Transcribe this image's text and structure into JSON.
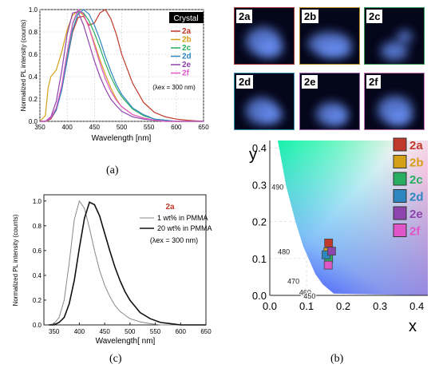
{
  "charts": {
    "a": {
      "caption": "(a)",
      "ylabel": "Normalized PL intensity (counts)",
      "xlabel": "Wavelength [nm]",
      "badge": "Crystal",
      "excitation_note": "(λex = 300 nm)",
      "x_ticks": [
        "350",
        "400",
        "450",
        "500",
        "550",
        "600",
        "650"
      ],
      "y_ticks": [
        "0.0",
        "0.2",
        "0.4",
        "0.6",
        "0.8",
        "1.0"
      ]
    },
    "b": {
      "caption": "(b)",
      "ylabel": "y",
      "xlabel": "x",
      "x_ticks": [
        "0.0",
        "0.1",
        "0.2",
        "0.3",
        "0.4"
      ],
      "y_ticks": [
        "0.0",
        "0.1",
        "0.2",
        "0.3",
        "0.4"
      ],
      "locus_labels": [
        "490",
        "480",
        "470",
        "460",
        "450"
      ]
    },
    "c": {
      "caption": "(c)",
      "ylabel": "Normalized PL intensity (counts)",
      "xlabel": "Wavelength[ nm]",
      "compound": "2a",
      "excitation_note": "(λex = 300 nm)",
      "x_ticks": [
        "350",
        "400",
        "450",
        "500",
        "550",
        "600",
        "650"
      ],
      "y_ticks": [
        "0.0",
        "0.2",
        "0.4",
        "0.6",
        "0.8",
        "1.0"
      ]
    }
  },
  "photos": [
    {
      "label": "2a",
      "border": "#a03a3a"
    },
    {
      "label": "2b",
      "border": "#b88a2a"
    },
    {
      "label": "2c",
      "border": "#3a9a5a"
    },
    {
      "label": "2d",
      "border": "#3a8ab0"
    },
    {
      "label": "2e",
      "border": "#a060b0"
    },
    {
      "label": "2f",
      "border": "#c070b0"
    }
  ],
  "chart_data": [
    {
      "type": "line",
      "title": "",
      "xlabel": "Wavelength [nm]",
      "ylabel": "Normalized PL intensity (counts)",
      "xlim": [
        350,
        650
      ],
      "ylim": [
        0,
        1.0
      ],
      "legend_position": "top-right",
      "series": [
        {
          "name": "2a",
          "color": "#c0392b",
          "x": [
            350,
            360,
            370,
            380,
            390,
            400,
            410,
            420,
            430,
            440,
            450,
            460,
            470,
            480,
            490,
            500,
            520,
            540,
            560,
            580,
            600,
            620,
            650
          ],
          "y": [
            0.0,
            0.0,
            0.02,
            0.1,
            0.28,
            0.55,
            0.8,
            0.93,
            0.94,
            0.86,
            0.88,
            0.97,
            1.0,
            0.92,
            0.78,
            0.6,
            0.34,
            0.17,
            0.08,
            0.04,
            0.02,
            0.01,
            0.0
          ]
        },
        {
          "name": "2b",
          "color": "#d4a017",
          "x": [
            350,
            360,
            365,
            370,
            380,
            390,
            400,
            410,
            420,
            430,
            440,
            450,
            460,
            470,
            480,
            490,
            500,
            520,
            540,
            560,
            580,
            600,
            650
          ],
          "y": [
            0.0,
            0.05,
            0.3,
            0.4,
            0.46,
            0.62,
            0.82,
            0.95,
            0.99,
            0.95,
            0.84,
            0.7,
            0.55,
            0.42,
            0.3,
            0.2,
            0.13,
            0.06,
            0.03,
            0.01,
            0.0,
            0.0,
            0.0
          ]
        },
        {
          "name": "2c",
          "color": "#27ae60",
          "x": [
            350,
            360,
            370,
            380,
            390,
            400,
            410,
            420,
            430,
            440,
            450,
            460,
            470,
            480,
            490,
            500,
            520,
            540,
            560,
            580,
            600,
            650
          ],
          "y": [
            0.0,
            0.0,
            0.03,
            0.12,
            0.3,
            0.6,
            0.87,
            0.99,
            0.97,
            0.9,
            0.79,
            0.66,
            0.52,
            0.4,
            0.3,
            0.22,
            0.11,
            0.05,
            0.02,
            0.01,
            0.0,
            0.0
          ]
        },
        {
          "name": "2d",
          "color": "#2e86c1",
          "x": [
            350,
            360,
            370,
            380,
            390,
            400,
            410,
            420,
            430,
            440,
            450,
            460,
            470,
            480,
            490,
            500,
            520,
            540,
            560,
            580,
            600,
            650
          ],
          "y": [
            0.0,
            0.0,
            0.03,
            0.1,
            0.28,
            0.55,
            0.82,
            0.96,
            1.0,
            0.96,
            0.86,
            0.73,
            0.58,
            0.45,
            0.33,
            0.24,
            0.12,
            0.06,
            0.02,
            0.01,
            0.0,
            0.0
          ]
        },
        {
          "name": "2e",
          "color": "#8e44ad",
          "x": [
            350,
            360,
            370,
            380,
            390,
            400,
            410,
            420,
            430,
            440,
            450,
            460,
            470,
            480,
            490,
            500,
            520,
            540,
            560,
            580,
            600,
            650
          ],
          "y": [
            0.0,
            0.0,
            0.04,
            0.18,
            0.45,
            0.78,
            0.97,
            0.98,
            0.86,
            0.7,
            0.54,
            0.4,
            0.29,
            0.2,
            0.14,
            0.09,
            0.04,
            0.02,
            0.01,
            0.0,
            0.0,
            0.0
          ]
        },
        {
          "name": "2f",
          "color": "#e056c8",
          "x": [
            350,
            360,
            370,
            380,
            390,
            400,
            410,
            420,
            430,
            440,
            450,
            460,
            470,
            480,
            490,
            500,
            520,
            540,
            560,
            580,
            600,
            650
          ],
          "y": [
            0.0,
            0.0,
            0.03,
            0.12,
            0.32,
            0.62,
            0.88,
            1.0,
            0.96,
            0.84,
            0.68,
            0.52,
            0.38,
            0.27,
            0.19,
            0.13,
            0.06,
            0.03,
            0.01,
            0.0,
            0.0,
            0.0
          ]
        }
      ]
    },
    {
      "type": "scatter",
      "title": "",
      "xlabel": "x",
      "ylabel": "y",
      "xlim": [
        0.0,
        0.43
      ],
      "ylim": [
        0.0,
        0.42
      ],
      "legend_position": "top-right",
      "series": [
        {
          "name": "2a",
          "color": "#c0392b",
          "x": [
            0.16
          ],
          "y": [
            0.142
          ]
        },
        {
          "name": "2b",
          "color": "#d4a017",
          "x": [
            0.158
          ],
          "y": [
            0.118
          ]
        },
        {
          "name": "2c",
          "color": "#27ae60",
          "x": [
            0.16
          ],
          "y": [
            0.1
          ]
        },
        {
          "name": "2d",
          "color": "#2e86c1",
          "x": [
            0.153
          ],
          "y": [
            0.11
          ]
        },
        {
          "name": "2e",
          "color": "#8e44ad",
          "x": [
            0.168
          ],
          "y": [
            0.12
          ]
        },
        {
          "name": "2f",
          "color": "#e056c8",
          "x": [
            0.159
          ],
          "y": [
            0.082
          ]
        }
      ]
    },
    {
      "type": "line",
      "title": "",
      "xlabel": "Wavelength[ nm]",
      "ylabel": "Normalized PL intensity (counts)",
      "xlim": [
        330,
        650
      ],
      "ylim": [
        0,
        1.05
      ],
      "legend_position": "top-right",
      "series": [
        {
          "name": "1 wt% in PMMA",
          "color": "#888888",
          "x": [
            340,
            350,
            360,
            370,
            380,
            390,
            400,
            410,
            420,
            430,
            440,
            450,
            460,
            470,
            480,
            490,
            500,
            520,
            540,
            560,
            580,
            600,
            620,
            650
          ],
          "y": [
            0.0,
            0.01,
            0.06,
            0.2,
            0.5,
            0.85,
            1.0,
            0.94,
            0.78,
            0.6,
            0.44,
            0.32,
            0.23,
            0.16,
            0.11,
            0.08,
            0.05,
            0.025,
            0.01,
            0.0,
            0.0,
            0.0,
            0.0,
            0.0
          ]
        },
        {
          "name": "20 wt% in PMMA",
          "color": "#111111",
          "x": [
            340,
            350,
            360,
            370,
            380,
            390,
            400,
            410,
            420,
            430,
            440,
            450,
            460,
            470,
            480,
            490,
            500,
            520,
            540,
            560,
            580,
            600,
            620,
            650
          ],
          "y": [
            0.0,
            0.0,
            0.02,
            0.06,
            0.17,
            0.36,
            0.62,
            0.86,
            0.99,
            0.97,
            0.88,
            0.74,
            0.6,
            0.47,
            0.36,
            0.27,
            0.2,
            0.1,
            0.05,
            0.02,
            0.01,
            0.0,
            0.0,
            0.0
          ]
        }
      ]
    }
  ]
}
